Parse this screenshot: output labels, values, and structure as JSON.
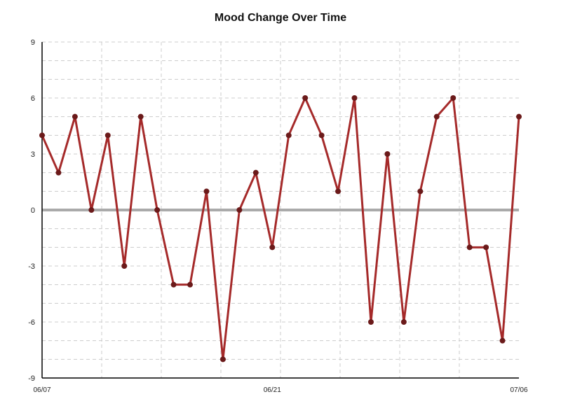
{
  "chart_data": {
    "type": "line",
    "title": "Mood Change Over Time",
    "xlabel": "",
    "ylabel": "",
    "ylim": [
      -9,
      9
    ],
    "yticks": [
      -9,
      -6,
      -3,
      0,
      3,
      6,
      9
    ],
    "ytick_labels": [
      "-9",
      "-6",
      "-3",
      "0",
      "3",
      "6",
      "9"
    ],
    "xlim": [
      "06/07",
      "07/06"
    ],
    "xtick_labels": [
      "06/07",
      "06/21",
      "07/06"
    ],
    "xtick_dates": [
      "2024-06-07",
      "2024-06-21",
      "2024-07-06"
    ],
    "x": [
      "2024-06-07",
      "2024-06-08",
      "2024-06-09",
      "2024-06-10",
      "2024-06-11",
      "2024-06-12",
      "2024-06-13",
      "2024-06-14",
      "2024-06-15",
      "2024-06-16",
      "2024-06-17",
      "2024-06-18",
      "2024-06-19",
      "2024-06-20",
      "2024-06-21",
      "2024-06-22",
      "2024-06-23",
      "2024-06-24",
      "2024-06-25",
      "2024-06-26",
      "2024-06-27",
      "2024-06-28",
      "2024-06-29",
      "2024-06-30",
      "2024-07-01",
      "2024-07-02",
      "2024-07-03",
      "2024-07-04",
      "2024-07-05",
      "2024-07-06"
    ],
    "series": [
      {
        "values": [
          4,
          2,
          5,
          0,
          4,
          -3,
          5,
          0,
          -4,
          -4,
          1,
          -8,
          0,
          2,
          -2,
          4,
          6,
          4,
          1,
          6,
          -6,
          3,
          -6,
          1,
          5,
          6,
          -2,
          -2,
          -7,
          5
        ]
      }
    ],
    "grid": true,
    "zero_line": true,
    "colors": {
      "line": "#a52a2a",
      "marker": "#6b1a1a",
      "zero_line": "#aaaaaa",
      "grid": "#cccccc",
      "axis": "#000000"
    }
  }
}
